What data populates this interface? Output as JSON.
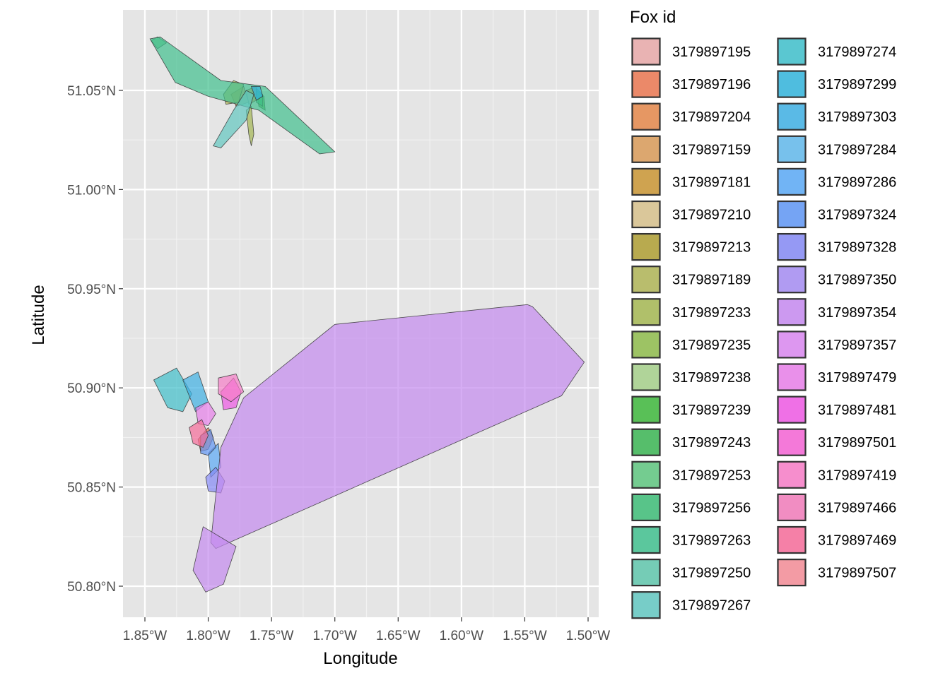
{
  "chart_data": {
    "type": "area",
    "xlabel": "Longitude",
    "ylabel": "Latitude",
    "xlim": [
      -1.86,
      -1.49
    ],
    "ylim": [
      50.785,
      51.1
    ],
    "x_ticks": [
      {
        "value": -1.85,
        "label": "1.85°W"
      },
      {
        "value": -1.8,
        "label": "1.80°W"
      },
      {
        "value": -1.75,
        "label": "1.75°W"
      },
      {
        "value": -1.7,
        "label": "1.70°W"
      },
      {
        "value": -1.65,
        "label": "1.65°W"
      },
      {
        "value": -1.6,
        "label": "1.60°W"
      },
      {
        "value": -1.55,
        "label": "1.55°W"
      },
      {
        "value": -1.5,
        "label": "1.50°W"
      }
    ],
    "y_ticks": [
      {
        "value": 50.8,
        "label": "50.80°N"
      },
      {
        "value": 50.85,
        "label": "50.85°N"
      },
      {
        "value": 50.9,
        "label": "50.90°N"
      },
      {
        "value": 50.95,
        "label": "50.95°N"
      },
      {
        "value": 51.0,
        "label": "51.00°N"
      },
      {
        "value": 51.05,
        "label": "51.05°N"
      }
    ],
    "grid": true,
    "legend": {
      "title": "Fox id",
      "position": "right",
      "columns": [
        [
          "3179897195",
          "3179897196",
          "3179897204",
          "3179897159",
          "3179897181",
          "3179897210",
          "3179897213",
          "3179897189",
          "3179897233",
          "3179897235",
          "3179897238",
          "3179897239",
          "3179897243",
          "3179897253",
          "3179897256",
          "3179897263",
          "3179897250",
          "3179897267"
        ],
        [
          "3179897274",
          "3179897299",
          "3179897303",
          "3179897284",
          "3179897286",
          "3179897324",
          "3179897328",
          "3179897350",
          "3179897354",
          "3179897357",
          "3179897479",
          "3179897481",
          "3179897501",
          "3179897419",
          "3179897466",
          "3179897469",
          "3179897507"
        ]
      ]
    },
    "series": [
      {
        "name": "3179897195",
        "color": "#E8A8A8",
        "polygons": []
      },
      {
        "name": "3179897196",
        "color": "#EA7751",
        "polygons": [
          [
            [
              -1.808,
              50.874
            ],
            [
              -1.8,
              50.88
            ],
            [
              -1.796,
              50.875
            ],
            [
              -1.8,
              50.869
            ],
            [
              -1.806,
              50.868
            ]
          ]
        ]
      },
      {
        "name": "3179897204",
        "color": "#E4874A",
        "polygons": [
          [
            [
              -1.77,
              51.05
            ],
            [
              -1.762,
              51.052
            ],
            [
              -1.762,
              51.045
            ],
            [
              -1.768,
              51.043
            ]
          ]
        ]
      },
      {
        "name": "3179897159",
        "color": "#D89A58",
        "polygons": [
          [
            [
              -1.782,
              51.048
            ],
            [
              -1.772,
              51.052
            ],
            [
              -1.768,
              51.044
            ],
            [
              -1.778,
              51.042
            ]
          ]
        ]
      },
      {
        "name": "3179897181",
        "color": "#C99534",
        "polygons": []
      },
      {
        "name": "3179897210",
        "color": "#D6C08B",
        "polygons": []
      },
      {
        "name": "3179897213",
        "color": "#AE9D33",
        "polygons": []
      },
      {
        "name": "3179897189",
        "color": "#AFB456",
        "polygons": [
          [
            [
              -1.788,
              51.048
            ],
            [
              -1.78,
              51.055
            ],
            [
              -1.772,
              51.053
            ],
            [
              -1.776,
              51.044
            ],
            [
              -1.786,
              51.043
            ]
          ]
        ]
      },
      {
        "name": "3179897233",
        "color": "#A4B752",
        "polygons": [
          [
            [
              -1.77,
              51.04
            ],
            [
              -1.766,
              51.042
            ],
            [
              -1.764,
              51.028
            ],
            [
              -1.766,
              51.022
            ],
            [
              -1.768,
              51.028
            ]
          ]
        ]
      },
      {
        "name": "3179897235",
        "color": "#8EBB4B",
        "polygons": []
      },
      {
        "name": "3179897238",
        "color": "#A5CF89",
        "polygons": []
      },
      {
        "name": "3179897239",
        "color": "#3EB73C",
        "polygons": [
          [
            [
              -1.762,
              51.05
            ],
            [
              -1.756,
              51.047
            ],
            [
              -1.755,
              51.04
            ],
            [
              -1.76,
              51.042
            ]
          ]
        ]
      },
      {
        "name": "3179897243",
        "color": "#3BB553",
        "polygons": []
      },
      {
        "name": "3179897253",
        "color": "#5EC57F",
        "polygons": [
          [
            [
              -1.845,
              51.075
            ],
            [
              -1.84,
              51.077
            ],
            [
              -1.833,
              51.074
            ],
            [
              -1.84,
              51.071
            ]
          ]
        ]
      },
      {
        "name": "3179897256",
        "color": "#3DBC77",
        "polygons": [
          [
            [
              -1.762,
              51.051
            ],
            [
              -1.757,
              51.048
            ],
            [
              -1.757,
              51.042
            ],
            [
              -1.762,
              51.044
            ]
          ]
        ]
      },
      {
        "name": "3179897263",
        "color": "#41C08E",
        "polygons": [
          [
            [
              -1.846,
              51.076
            ],
            [
              -1.838,
              51.077
            ],
            [
              -1.79,
              51.055
            ],
            [
              -1.755,
              51.052
            ],
            [
              -1.7,
              51.019
            ],
            [
              -1.712,
              51.018
            ],
            [
              -1.76,
              51.04
            ],
            [
              -1.8,
              51.047
            ],
            [
              -1.826,
              51.054
            ]
          ]
        ]
      },
      {
        "name": "3179897250",
        "color": "#5FC6AB",
        "polygons": []
      },
      {
        "name": "3179897267",
        "color": "#62C7C1",
        "polygons": [
          [
            [
              -1.796,
              51.022
            ],
            [
              -1.78,
              51.04
            ],
            [
              -1.77,
              51.05
            ],
            [
              -1.764,
              51.048
            ],
            [
              -1.77,
              51.035
            ],
            [
              -1.79,
              51.021
            ]
          ]
        ]
      },
      {
        "name": "3179897274",
        "color": "#40BFCB",
        "polygons": [
          [
            [
              -1.843,
              50.904
            ],
            [
              -1.825,
              50.91
            ],
            [
              -1.813,
              50.897
            ],
            [
              -1.82,
              50.888
            ],
            [
              -1.832,
              50.89
            ]
          ]
        ]
      },
      {
        "name": "3179897299",
        "color": "#33B4DC",
        "polygons": [
          [
            [
              -1.766,
              51.052
            ],
            [
              -1.759,
              51.052
            ],
            [
              -1.757,
              51.047
            ],
            [
              -1.762,
              51.045
            ]
          ]
        ]
      },
      {
        "name": "3179897303",
        "color": "#3FB0E4",
        "polygons": [
          [
            [
              -1.82,
              50.904
            ],
            [
              -1.808,
              50.908
            ],
            [
              -1.8,
              50.893
            ],
            [
              -1.81,
              50.888
            ]
          ]
        ]
      },
      {
        "name": "3179897284",
        "color": "#62B9EB",
        "polygons": []
      },
      {
        "name": "3179897286",
        "color": "#5BA9F6",
        "polygons": [
          [
            [
              -1.8,
              50.867
            ],
            [
              -1.792,
              50.872
            ],
            [
              -1.79,
              50.86
            ],
            [
              -1.798,
              50.855
            ]
          ]
        ]
      },
      {
        "name": "3179897324",
        "color": "#5F96F4",
        "polygons": [
          [
            [
              -1.806,
              50.876
            ],
            [
              -1.798,
              50.879
            ],
            [
              -1.794,
              50.87
            ],
            [
              -1.8,
              50.866
            ],
            [
              -1.806,
              50.867
            ]
          ]
        ]
      },
      {
        "name": "3179897328",
        "color": "#8589F5",
        "polygons": [
          [
            [
              -1.802,
              50.855
            ],
            [
              -1.794,
              50.86
            ],
            [
              -1.787,
              50.853
            ],
            [
              -1.79,
              50.847
            ],
            [
              -1.8,
              50.848
            ]
          ]
        ]
      },
      {
        "name": "3179897350",
        "color": "#A48CF2",
        "polygons": []
      },
      {
        "name": "3179897354",
        "color": "#C58AF0",
        "polygons": [
          [
            [
              -1.798,
              50.822
            ],
            [
              -1.795,
              50.84
            ],
            [
              -1.79,
              50.87
            ],
            [
              -1.772,
              50.895
            ],
            [
              -1.7,
              50.932
            ],
            [
              -1.548,
              50.942
            ],
            [
              -1.544,
              50.941
            ],
            [
              -1.503,
              50.913
            ],
            [
              -1.521,
              50.896
            ],
            [
              -1.794,
              50.819
            ]
          ],
          [
            [
              -1.804,
              50.83
            ],
            [
              -1.778,
              50.82
            ],
            [
              -1.788,
              50.801
            ],
            [
              -1.802,
              50.797
            ],
            [
              -1.812,
              50.808
            ]
          ]
        ]
      },
      {
        "name": "3179897357",
        "color": "#D987F0",
        "polygons": []
      },
      {
        "name": "3179897479",
        "color": "#E77FE9",
        "polygons": [
          [
            [
              -1.81,
              50.89
            ],
            [
              -1.8,
              50.893
            ],
            [
              -1.794,
              50.887
            ],
            [
              -1.8,
              50.881
            ],
            [
              -1.808,
              50.882
            ]
          ]
        ]
      },
      {
        "name": "3179897481",
        "color": "#EE59E4",
        "polygons": [
          [
            [
              -1.79,
              50.898
            ],
            [
              -1.78,
              50.905
            ],
            [
              -1.774,
              50.898
            ],
            [
              -1.778,
              50.89
            ],
            [
              -1.788,
              50.889
            ]
          ]
        ]
      },
      {
        "name": "3179897501",
        "color": "#F564D5",
        "polygons": []
      },
      {
        "name": "3179897419",
        "color": "#F77DC7",
        "polygons": [
          [
            [
              -1.792,
              50.905
            ],
            [
              -1.778,
              50.907
            ],
            [
              -1.772,
              50.898
            ],
            [
              -1.782,
              50.893
            ],
            [
              -1.792,
              50.897
            ]
          ]
        ]
      },
      {
        "name": "3179897466",
        "color": "#F17BBA",
        "polygons": []
      },
      {
        "name": "3179897469",
        "color": "#F66C9A",
        "polygons": [
          [
            [
              -1.815,
              50.88
            ],
            [
              -1.805,
              50.884
            ],
            [
              -1.8,
              50.876
            ],
            [
              -1.804,
              50.87
            ],
            [
              -1.812,
              50.872
            ]
          ]
        ]
      },
      {
        "name": "3179897507",
        "color": "#F38C97",
        "polygons": []
      }
    ]
  }
}
